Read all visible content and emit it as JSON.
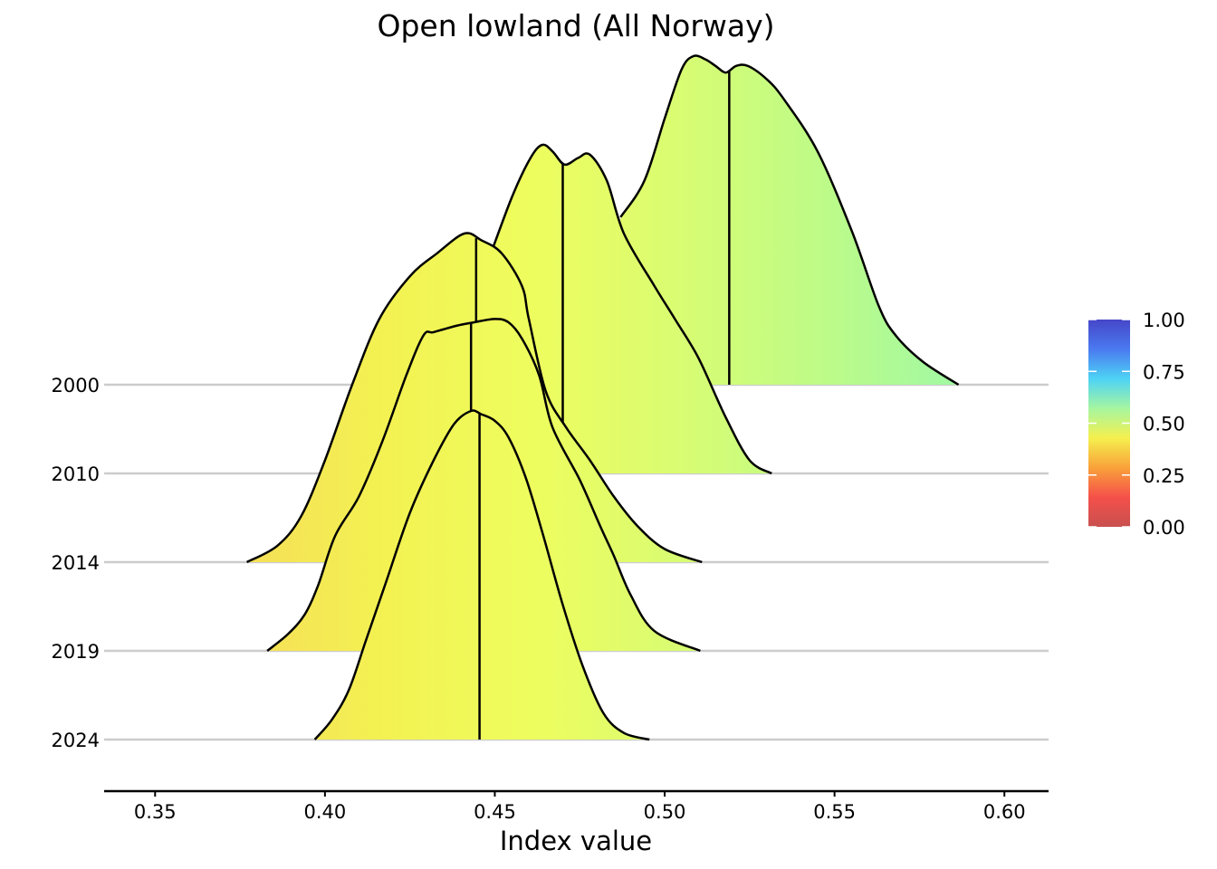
{
  "chart_data": {
    "type": "ridgeline",
    "title": "Open lowland (All Norway)",
    "xlabel": "Index value",
    "ylabel": "",
    "xlim": [
      0.335,
      0.613
    ],
    "x_ticks": [
      "0.35",
      "0.40",
      "0.45",
      "0.50",
      "0.55",
      "0.60"
    ],
    "x_tick_values": [
      0.35,
      0.4,
      0.45,
      0.5,
      0.55,
      0.6
    ],
    "grid": false,
    "legend_placement": "right",
    "colorbar": {
      "ticks": [
        "1.00",
        "0.75",
        "0.50",
        "0.25",
        "0.00"
      ],
      "tick_values": [
        1.0,
        0.75,
        0.5,
        0.25,
        0.0
      ],
      "colors": [
        "#c8504f",
        "#f5504a",
        "#f9a23a",
        "#f5f04e",
        "#a6f6a0",
        "#4ed3f5",
        "#4a7af0",
        "#4646c8"
      ]
    },
    "series": [
      {
        "name": "2000",
        "median": 0.519,
        "x": [
          0.487,
          0.494,
          0.5,
          0.505,
          0.5085,
          0.512,
          0.515,
          0.518,
          0.521,
          0.5245,
          0.53,
          0.535,
          0.545,
          0.555,
          0.563,
          0.568,
          0.576,
          0.5865
        ],
        "density": [
          0.51,
          0.62,
          0.81,
          0.96,
          1.0,
          0.99,
          0.97,
          0.95,
          0.97,
          0.97,
          0.93,
          0.87,
          0.71,
          0.47,
          0.24,
          0.15,
          0.07,
          0.0
        ]
      },
      {
        "name": "2010",
        "median": 0.47,
        "x": [
          0.402,
          0.4085,
          0.416,
          0.425,
          0.435,
          0.447,
          0.455,
          0.4605,
          0.464,
          0.467,
          0.4705,
          0.4745,
          0.478,
          0.483,
          0.488,
          0.497,
          0.503,
          0.51,
          0.518,
          0.525,
          0.5315
        ],
        "density": [
          0.0,
          0.02,
          0.04,
          0.12,
          0.31,
          0.62,
          0.84,
          0.96,
          1.0,
          0.98,
          0.94,
          0.96,
          0.97,
          0.89,
          0.73,
          0.57,
          0.47,
          0.35,
          0.17,
          0.04,
          0.0
        ]
      },
      {
        "name": "2014",
        "median": 0.4445,
        "x": [
          0.377,
          0.386,
          0.393,
          0.4,
          0.408,
          0.416,
          0.425,
          0.433,
          0.441,
          0.446,
          0.452,
          0.458,
          0.46,
          0.465,
          0.471,
          0.478,
          0.485,
          0.492,
          0.5,
          0.511
        ],
        "density": [
          0.0,
          0.05,
          0.14,
          0.31,
          0.54,
          0.74,
          0.87,
          0.94,
          1.0,
          0.98,
          0.94,
          0.84,
          0.74,
          0.52,
          0.41,
          0.31,
          0.2,
          0.11,
          0.04,
          0.0
        ]
      },
      {
        "name": "2019",
        "median": 0.443,
        "x": [
          0.383,
          0.389,
          0.394,
          0.398,
          0.403,
          0.41,
          0.417,
          0.424,
          0.429,
          0.432,
          0.439,
          0.444,
          0.45,
          0.454,
          0.458,
          0.463,
          0.467,
          0.475,
          0.481,
          0.485,
          0.49,
          0.497,
          0.5105
        ],
        "density": [
          0.0,
          0.05,
          0.11,
          0.2,
          0.35,
          0.47,
          0.64,
          0.84,
          0.96,
          0.97,
          0.99,
          1.0,
          1.01,
          1.0,
          0.95,
          0.84,
          0.68,
          0.52,
          0.38,
          0.29,
          0.17,
          0.06,
          0.0
        ]
      },
      {
        "name": "2024",
        "median": 0.4455,
        "x": [
          0.397,
          0.402,
          0.407,
          0.412,
          0.418,
          0.425,
          0.432,
          0.438,
          0.443,
          0.446,
          0.45,
          0.454,
          0.459,
          0.464,
          0.47,
          0.476,
          0.482,
          0.488,
          0.4955
        ],
        "density": [
          0.0,
          0.06,
          0.15,
          0.3,
          0.48,
          0.69,
          0.85,
          0.96,
          1.0,
          0.99,
          0.97,
          0.92,
          0.8,
          0.63,
          0.41,
          0.22,
          0.08,
          0.02,
          0.0
        ]
      }
    ]
  }
}
